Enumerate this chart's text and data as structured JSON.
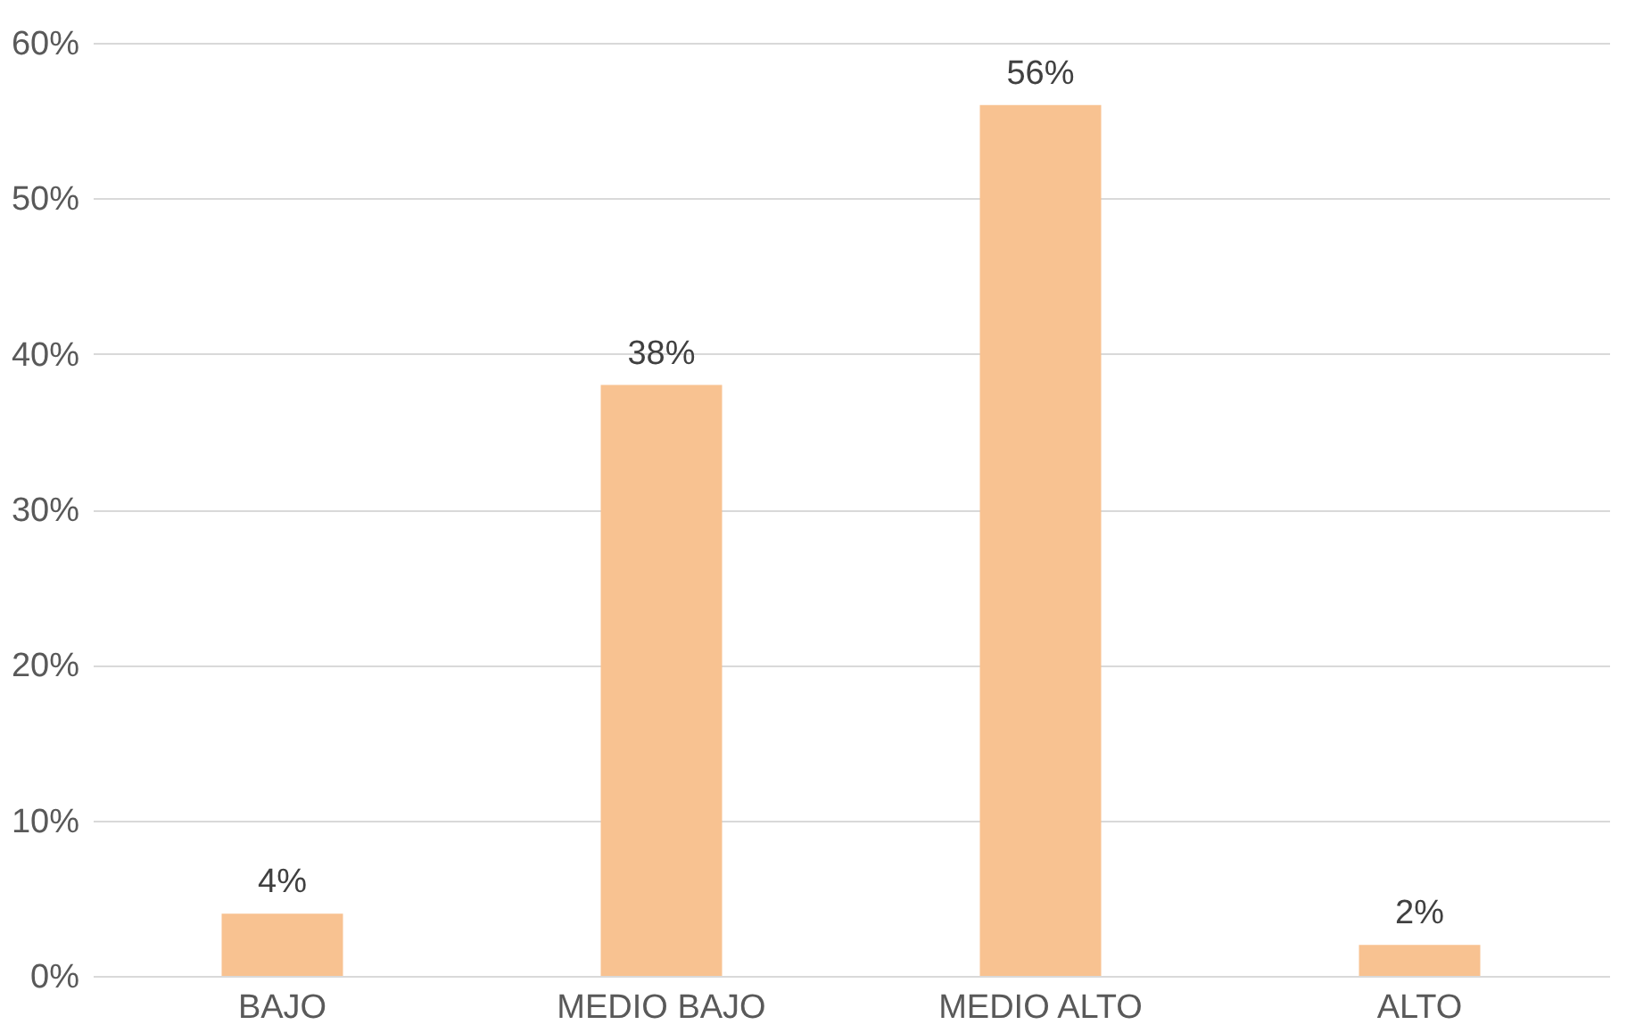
{
  "chart_data": {
    "type": "bar",
    "categories": [
      "BAJO",
      "MEDIO BAJO",
      "MEDIO ALTO",
      "ALTO"
    ],
    "values": [
      4,
      38,
      56,
      2
    ],
    "value_labels": [
      "4%",
      "38%",
      "56%",
      "2%"
    ],
    "color": "#f8c291",
    "ylim": [
      0,
      60
    ],
    "yticks": [
      {
        "value": 0,
        "label": "0%"
      },
      {
        "value": 10,
        "label": "10%"
      },
      {
        "value": 20,
        "label": "20%"
      },
      {
        "value": 30,
        "label": "30%"
      },
      {
        "value": 40,
        "label": "40%"
      },
      {
        "value": 50,
        "label": "50%"
      },
      {
        "value": 60,
        "label": "60%"
      }
    ],
    "grid": "y"
  }
}
